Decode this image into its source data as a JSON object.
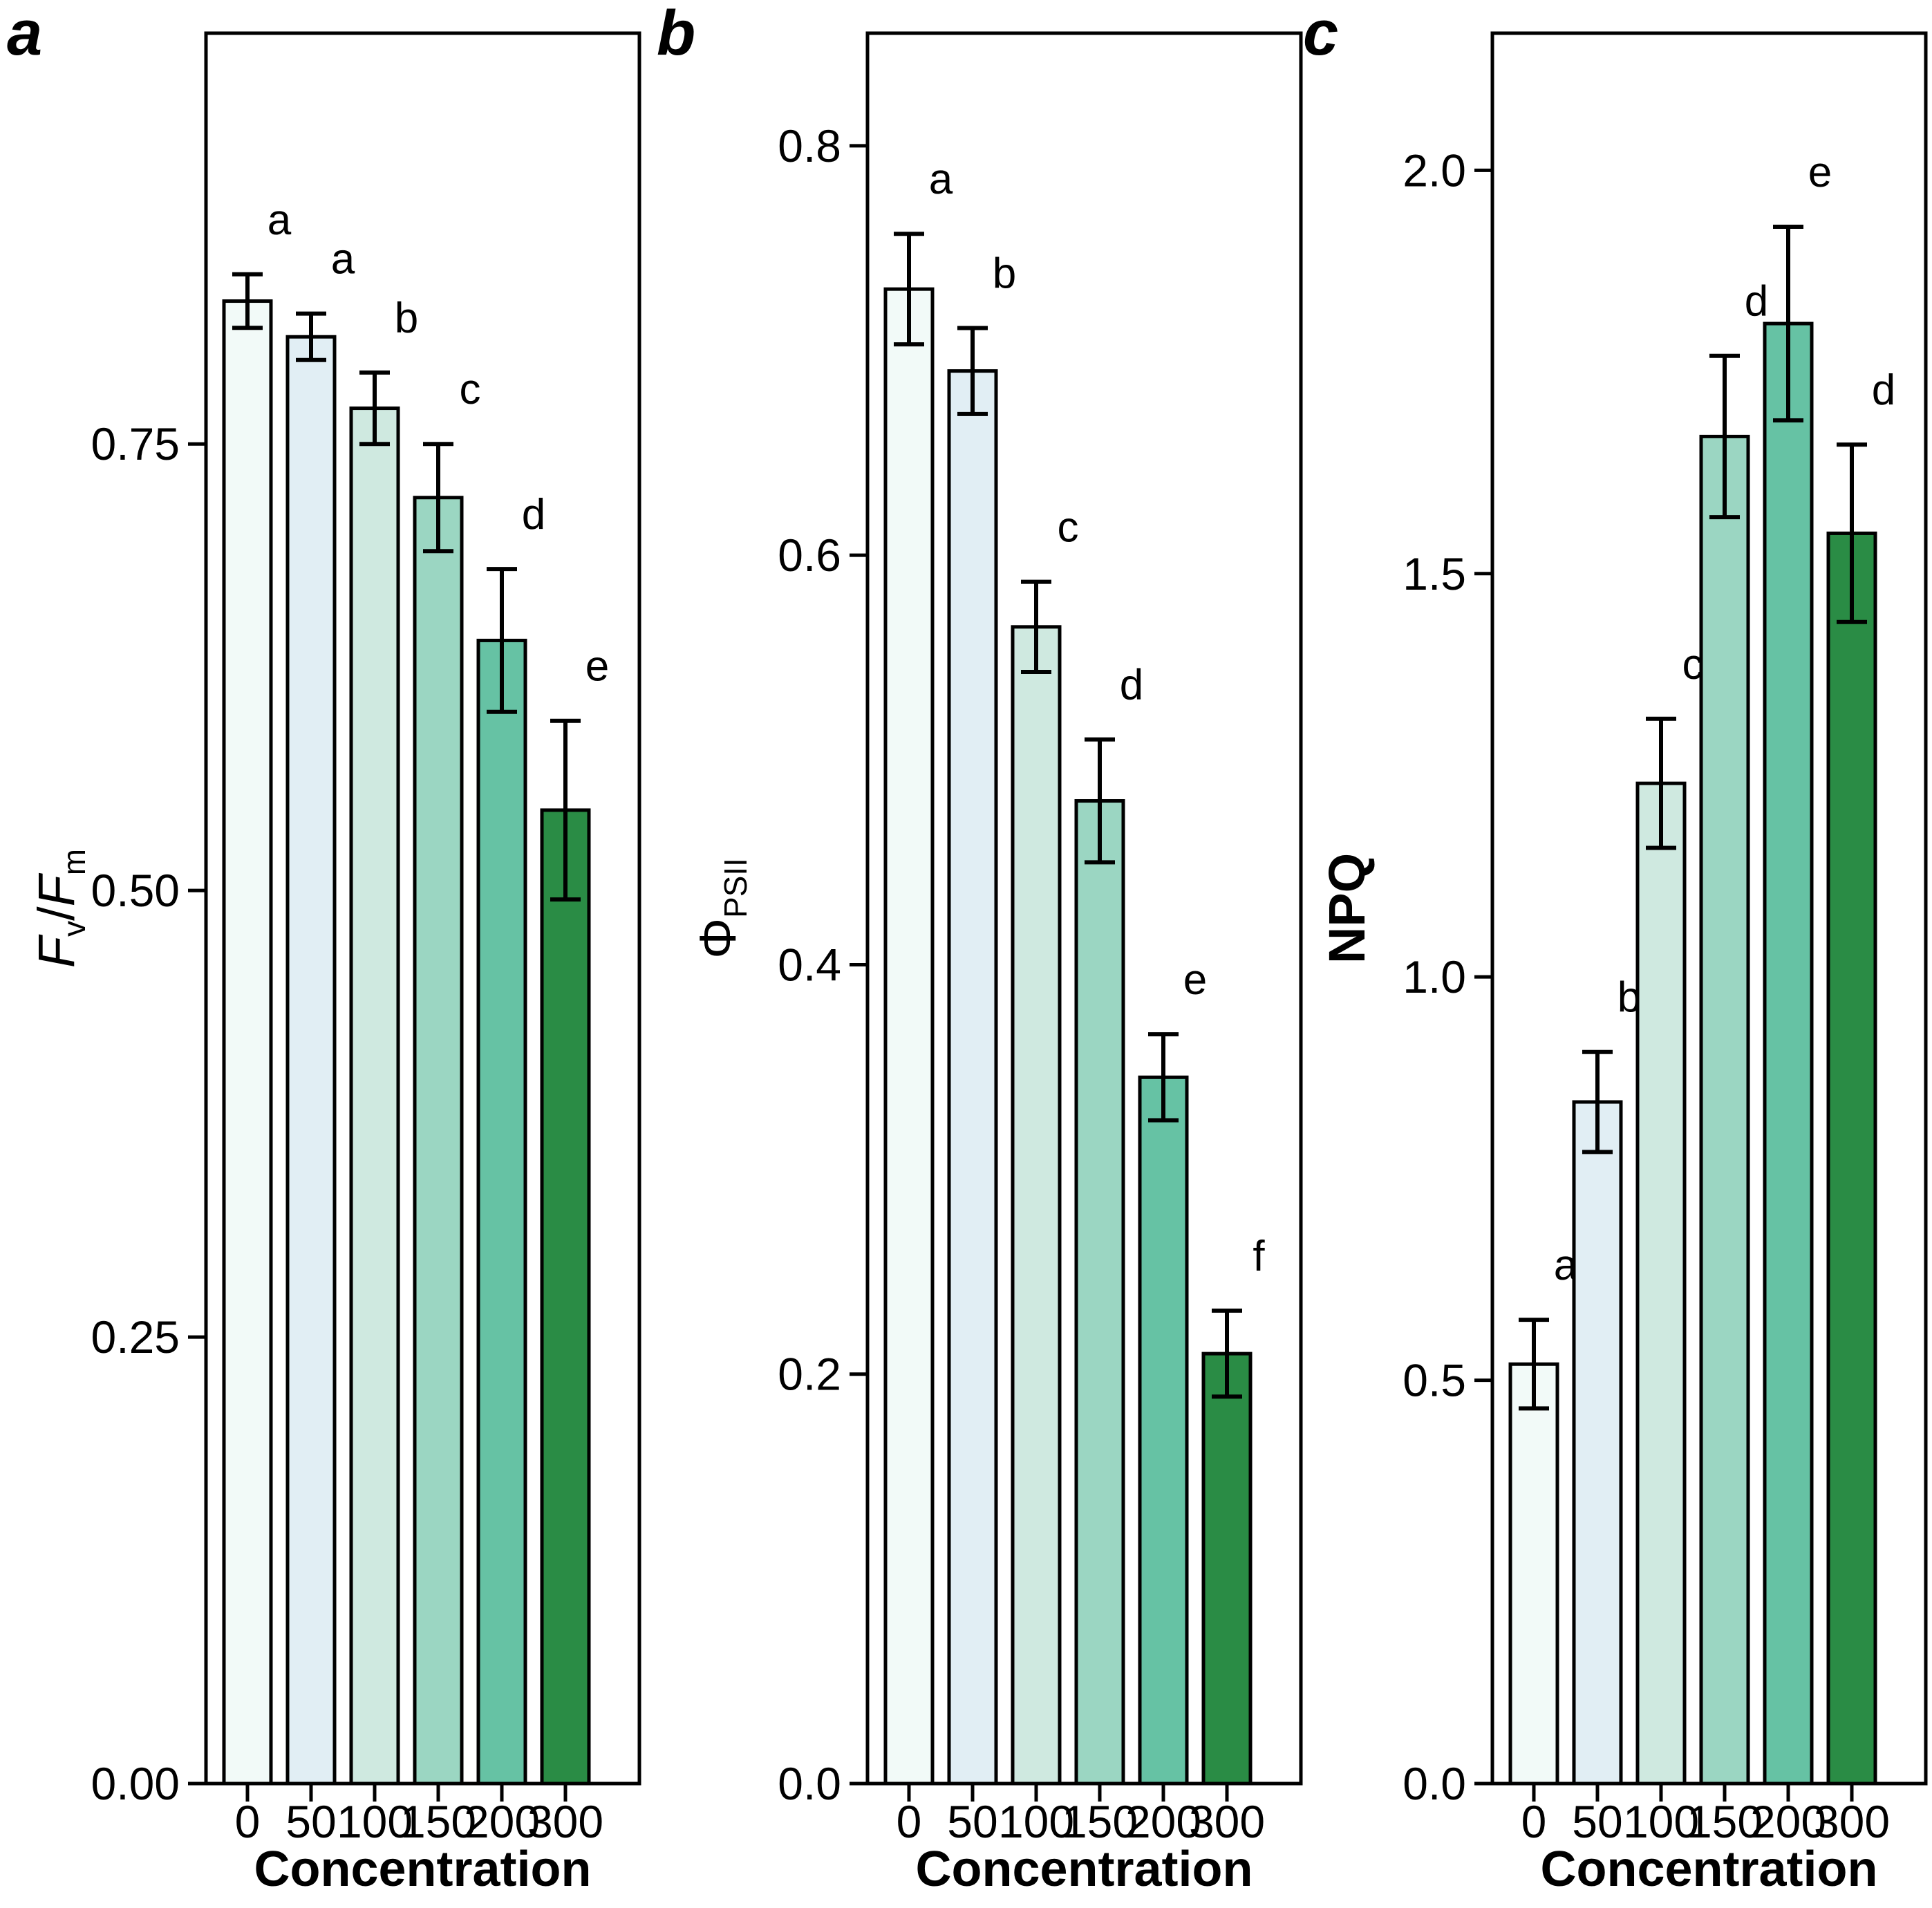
{
  "figure_title": "",
  "style": {
    "background": "#ffffff",
    "bar_colors": [
      "#f2faf8",
      "#e1eef4",
      "#cfe9e0",
      "#9bd6c2",
      "#66c2a4",
      "#2a8c45"
    ],
    "bar_border_color": "#000000",
    "error_bar_color": "#000000",
    "axis_color": "#000000",
    "text_color": "#000000"
  },
  "chart_data": [
    {
      "type": "bar",
      "panel_label": "a",
      "xlabel": "Concentration",
      "ylabel": "Fv/Fm",
      "ylabel_parts": [
        {
          "t": "F",
          "i": true
        },
        {
          "t": "v",
          "sub": true
        },
        {
          "t": "/"
        },
        {
          "t": "F",
          "i": true
        },
        {
          "t": "m",
          "sub": true
        }
      ],
      "ylabel_bold": false,
      "categories": [
        "0",
        "50",
        "100",
        "150",
        "200",
        "300"
      ],
      "values": [
        0.83,
        0.81,
        0.77,
        0.72,
        0.64,
        0.545
      ],
      "errors": [
        0.015,
        0.013,
        0.02,
        0.03,
        0.04,
        0.05
      ],
      "sig_letters": [
        "a",
        "a",
        "b",
        "c",
        "d",
        "e"
      ],
      "yticks": [
        {
          "value": 0.0,
          "label": "0.00"
        },
        {
          "value": 0.25,
          "label": "0.25"
        },
        {
          "value": 0.5,
          "label": "0.50"
        },
        {
          "value": 0.75,
          "label": "0.75"
        }
      ],
      "ylim": [
        0,
        0.98
      ],
      "grid": false,
      "legend": false
    },
    {
      "type": "bar",
      "panel_label": "b",
      "xlabel": "Concentration",
      "ylabel": "ΦPSII",
      "ylabel_parts": [
        {
          "t": "Φ"
        },
        {
          "t": "PSII",
          "sub": true
        }
      ],
      "ylabel_bold": false,
      "categories": [
        "0",
        "50",
        "100",
        "150",
        "200",
        "300"
      ],
      "values": [
        0.73,
        0.69,
        0.565,
        0.48,
        0.345,
        0.21
      ],
      "errors": [
        0.027,
        0.021,
        0.022,
        0.03,
        0.021,
        0.021
      ],
      "sig_letters": [
        "a",
        "b",
        "c",
        "d",
        "e",
        "f"
      ],
      "yticks": [
        {
          "value": 0.0,
          "label": "0.0"
        },
        {
          "value": 0.2,
          "label": "0.2"
        },
        {
          "value": 0.4,
          "label": "0.4"
        },
        {
          "value": 0.6,
          "label": "0.6"
        },
        {
          "value": 0.8,
          "label": "0.8"
        }
      ],
      "ylim": [
        0,
        0.855
      ],
      "grid": false,
      "legend": false
    },
    {
      "type": "bar",
      "panel_label": "c",
      "xlabel": "Concentration",
      "ylabel": "NPQ",
      "ylabel_parts": [
        {
          "t": "NPQ"
        }
      ],
      "ylabel_bold": true,
      "categories": [
        "0",
        "50",
        "100",
        "150",
        "200",
        "300"
      ],
      "values": [
        0.52,
        0.845,
        1.24,
        1.67,
        1.81,
        1.55
      ],
      "errors": [
        0.055,
        0.062,
        0.08,
        0.1,
        0.12,
        0.11
      ],
      "sig_letters": [
        "a",
        "b",
        "c",
        "d",
        "e",
        "d"
      ],
      "yticks": [
        {
          "value": 0.0,
          "label": "0.0"
        },
        {
          "value": 0.5,
          "label": "0.5"
        },
        {
          "value": 1.0,
          "label": "1.0"
        },
        {
          "value": 1.5,
          "label": "1.5"
        },
        {
          "value": 2.0,
          "label": "2.0"
        }
      ],
      "ylim": [
        0,
        2.17
      ],
      "grid": false,
      "legend": false
    }
  ]
}
